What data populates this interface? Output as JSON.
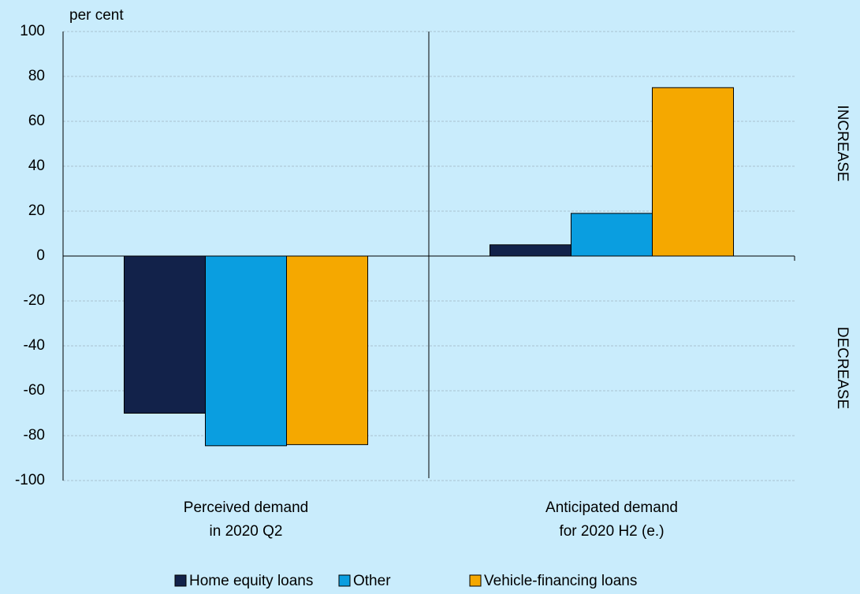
{
  "chart_data": {
    "type": "bar",
    "unit_label": "per cent",
    "categories": [
      "Perceived demand\nin 2020 Q2",
      "Anticipated demand\nfor 2020 H2 (e.)"
    ],
    "series": [
      {
        "name": "Home equity loans",
        "color": "#12224a",
        "values": [
          -70,
          5
        ]
      },
      {
        "name": "Other",
        "color": "#0a9ee0",
        "values": [
          -84.5,
          19
        ]
      },
      {
        "name": "Vehicle-financing loans",
        "color": "#f5a800",
        "values": [
          -84,
          75
        ]
      }
    ],
    "ylim": [
      -100,
      100
    ],
    "yticks": [
      -100,
      -80,
      -60,
      -40,
      -20,
      0,
      20,
      40,
      60,
      80,
      100
    ],
    "grid": true,
    "annotations": [
      "INCREASE",
      "DECREASE"
    ]
  }
}
